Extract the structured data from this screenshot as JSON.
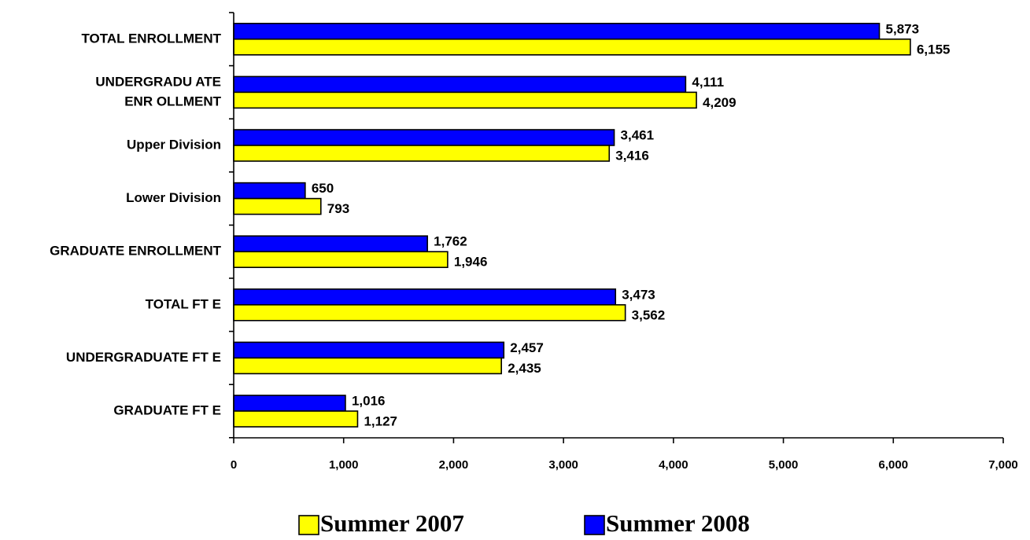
{
  "chart_data": {
    "type": "bar",
    "orientation": "horizontal",
    "categories": [
      [
        "TOTAL ENROLLMENT"
      ],
      [
        "UNDERGRADU ATE",
        "ENR OLLMENT"
      ],
      [
        "Upper Division"
      ],
      [
        "Lower Division"
      ],
      [
        "GRADUATE ENROLLMENT"
      ],
      [
        "TOTAL FT E"
      ],
      [
        "UNDERGRADUATE FT E"
      ],
      [
        "GRADUATE FT E"
      ]
    ],
    "series": [
      {
        "name": "Summer 2008",
        "color": "#0000ff",
        "values": [
          5873,
          4111,
          3461,
          650,
          1762,
          3473,
          2457,
          1016
        ],
        "labels": [
          "5,873",
          "4,111",
          "3,461",
          "650",
          "1,762",
          "3,473",
          "2,457",
          "1,016"
        ]
      },
      {
        "name": "Summer 2007",
        "color": "#ffff00",
        "values": [
          6155,
          4209,
          3416,
          793,
          1946,
          3562,
          2435,
          1127
        ],
        "labels": [
          "6,155",
          "4,209",
          "3,416",
          "793",
          "1,946",
          "3,562",
          "2,435",
          "1,127"
        ]
      }
    ],
    "xlim": [
      0,
      7000
    ],
    "xticks": [
      0,
      1000,
      2000,
      3000,
      4000,
      5000,
      6000,
      7000
    ],
    "xtick_labels": [
      "0",
      "1,000",
      "2,000",
      "3,000",
      "4,000",
      "5,000",
      "6,000",
      "7,000"
    ],
    "grid": false,
    "legend_position": "bottom",
    "legend": [
      {
        "name": "Summer 2007",
        "color": "#ffff00"
      },
      {
        "name": "Summer 2008",
        "color": "#0000ff"
      }
    ]
  }
}
